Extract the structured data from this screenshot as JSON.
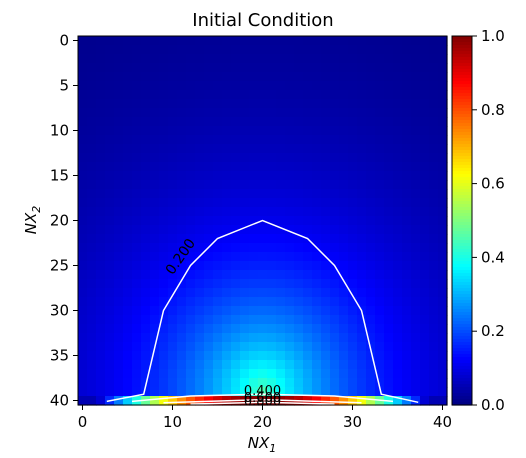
{
  "chart_data": {
    "type": "heatmap",
    "title": "Initial Condition",
    "xlabel": "NX1",
    "ylabel": "NX2",
    "xlabel_main": "NX",
    "xlabel_sub": "1",
    "ylabel_main": "NX",
    "ylabel_sub": "2",
    "grid": false,
    "colormap": "jet",
    "xlim": [
      -0.5,
      40.5
    ],
    "ylim": [
      40.5,
      -0.5
    ],
    "xticks": [
      0,
      10,
      20,
      30,
      40
    ],
    "yticks": [
      0,
      5,
      10,
      15,
      20,
      25,
      30,
      35,
      40
    ],
    "xtick_labels": [
      "0",
      "10",
      "20",
      "30",
      "40"
    ],
    "ytick_labels": [
      "0",
      "5",
      "10",
      "15",
      "20",
      "25",
      "30",
      "35",
      "40"
    ],
    "grid_size": [
      41,
      41
    ],
    "field": {
      "center_x": 20,
      "boundary_row": 40,
      "boundary_peak": 1.0,
      "interior_value_at_row_39": 0.45,
      "decay_length_rows": 21,
      "half_width_cols": 19
    },
    "colorbar": {
      "range": [
        0.0,
        1.0
      ],
      "ticks": [
        0.0,
        0.2,
        0.4,
        0.6,
        0.8,
        1.0
      ],
      "tick_labels": [
        "0.0",
        "0.2",
        "0.4",
        "0.6",
        "0.8",
        "1.0"
      ]
    },
    "contours": [
      {
        "level": 0.2,
        "label": "0.200",
        "color": "#ffffff"
      },
      {
        "level": 0.4,
        "label": "0.400",
        "color": "#ffffff"
      },
      {
        "level": 0.6,
        "label": "0.600",
        "color": "#ffffff"
      },
      {
        "level": 0.8,
        "label": "0.800",
        "color": "#ffffff"
      }
    ]
  }
}
